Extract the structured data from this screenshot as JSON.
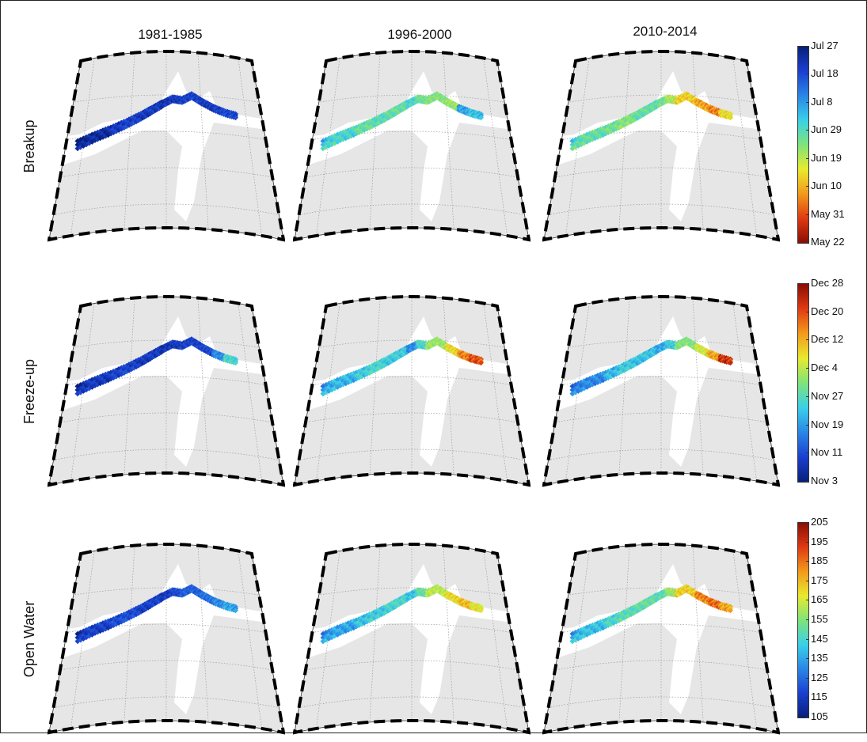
{
  "column_titles": [
    "1981-1985",
    "1996-2000",
    "2010-2014"
  ],
  "rows": [
    {
      "label": "Breakup",
      "colorbar": {
        "ticks": [
          "Jul 27",
          "Jul 18",
          "Jul 8",
          "Jun 29",
          "Jun 19",
          "Jun 10",
          "May 31",
          "May 22"
        ],
        "direction": "top-is-blue",
        "colors": [
          "#08207a",
          "#1a3fd0",
          "#2b86e6",
          "#3ad0e8",
          "#7fe37a",
          "#e8ea2e",
          "#f29a1c",
          "#e03a12",
          "#8a0d05"
        ]
      },
      "panels": [
        {
          "pattern": [
            0.05,
            0.1,
            0.12,
            0.1,
            0.08,
            0.1,
            0.12,
            0.1,
            0.12,
            0.14
          ]
        },
        {
          "pattern": [
            0.45,
            0.5,
            0.48,
            0.5,
            0.45,
            0.52,
            0.55,
            0.58,
            0.35,
            0.4
          ]
        },
        {
          "pattern": [
            0.5,
            0.52,
            0.55,
            0.5,
            0.52,
            0.6,
            0.72,
            0.78,
            0.82,
            0.7
          ]
        }
      ]
    },
    {
      "label": "Freeze-up",
      "colorbar": {
        "ticks": [
          "Dec 28",
          "Dec 20",
          "Dec 12",
          "Dec 4",
          "Nov 27",
          "Nov 19",
          "Nov 11",
          "Nov 3"
        ],
        "direction": "top-is-red",
        "colors": [
          "#8a0d05",
          "#e03a12",
          "#f29a1c",
          "#e8ea2e",
          "#7fe37a",
          "#3ad0e8",
          "#2b86e6",
          "#1a3fd0",
          "#08207a"
        ]
      },
      "panels": [
        {
          "pattern": [
            0.1,
            0.12,
            0.12,
            0.1,
            0.08,
            0.1,
            0.12,
            0.14,
            0.3,
            0.45
          ]
        },
        {
          "pattern": [
            0.38,
            0.42,
            0.45,
            0.42,
            0.3,
            0.45,
            0.58,
            0.7,
            0.82,
            0.88
          ]
        },
        {
          "pattern": [
            0.3,
            0.38,
            0.42,
            0.4,
            0.35,
            0.42,
            0.55,
            0.65,
            0.78,
            0.92
          ]
        }
      ]
    },
    {
      "label": "Open Water",
      "colorbar": {
        "ticks": [
          "205",
          "195",
          "185",
          "175",
          "165",
          "155",
          "145",
          "135",
          "125",
          "115",
          "105"
        ],
        "direction": "top-is-red",
        "colors": [
          "#8a0d05",
          "#e03a12",
          "#f29a1c",
          "#e8ea2e",
          "#7fe37a",
          "#3ad0e8",
          "#2b86e6",
          "#1a3fd0",
          "#08207a"
        ]
      },
      "panels": [
        {
          "pattern": [
            0.12,
            0.15,
            0.15,
            0.12,
            0.1,
            0.15,
            0.2,
            0.25,
            0.3,
            0.35
          ]
        },
        {
          "pattern": [
            0.35,
            0.4,
            0.42,
            0.45,
            0.4,
            0.5,
            0.62,
            0.7,
            0.75,
            0.68
          ]
        },
        {
          "pattern": [
            0.4,
            0.45,
            0.48,
            0.5,
            0.48,
            0.58,
            0.72,
            0.82,
            0.85,
            0.78
          ]
        }
      ]
    }
  ],
  "map_style": {
    "land_color": "#e6e6e6",
    "ocean_color": "#ffffff",
    "grid_color": "#9a9a9a",
    "frame_dash": "#000000"
  }
}
